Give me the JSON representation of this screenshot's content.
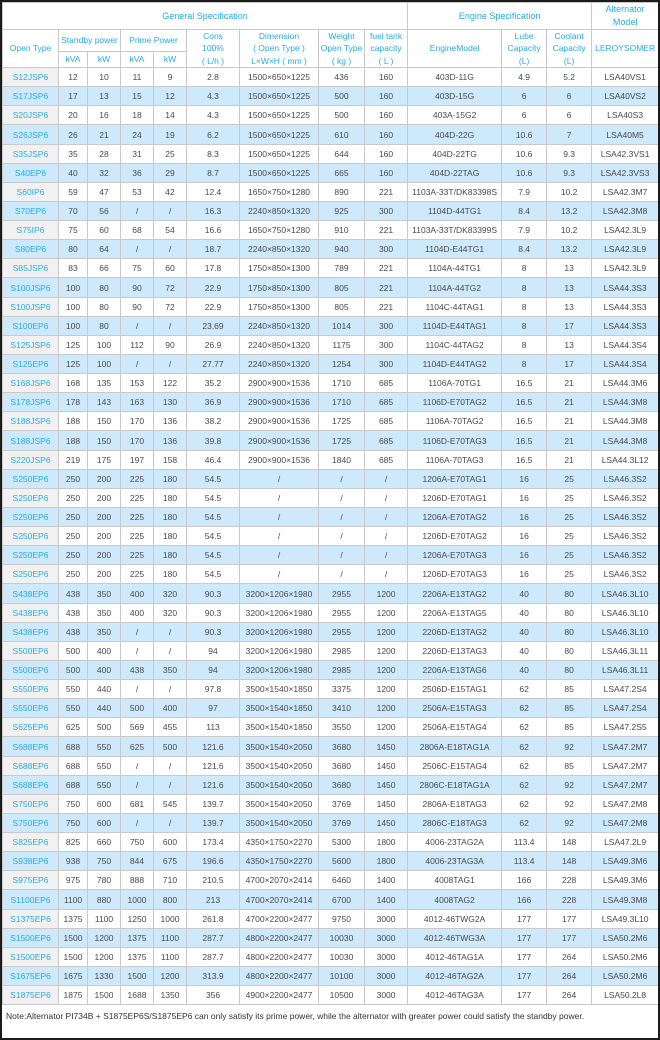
{
  "table": {
    "header": {
      "group_general": "General Specification",
      "group_engine": "Engine Specification",
      "group_alternator": "Alternator Model",
      "open_type": "Open Type",
      "standby": "Standby power",
      "prime": "Prime Power",
      "kva": "kVA",
      "kw": "kW",
      "cons": [
        "Cons",
        "100%",
        "( L/h )"
      ],
      "dimension": [
        "Dimension",
        "( Open Type )",
        "L×W×H ( mm )"
      ],
      "weight": [
        "Weight",
        "Open Type",
        "( kg )"
      ],
      "fuel": [
        "fuel tank",
        "capacity",
        "( L )"
      ],
      "engine_model": "EngineModel",
      "lube": [
        "Lube",
        "Capacity",
        "(L)"
      ],
      "coolant": [
        "Coolant",
        "Capacity",
        "(L)"
      ],
      "leroysomer": "LEROYSOMER"
    },
    "rows": [
      [
        "S12JSP6",
        "12",
        "10",
        "11",
        "9",
        "2.8",
        "1500×650×1225",
        "436",
        "160",
        "403D-11G",
        "4.9",
        "5.2",
        "LSA40VS1"
      ],
      [
        "S17JSP6",
        "17",
        "13",
        "15",
        "12",
        "4.3",
        "1500×650×1225",
        "500",
        "160",
        "403D-15G",
        "6",
        "6",
        "LSA40VS2"
      ],
      [
        "S20JSP6",
        "20",
        "16",
        "18",
        "14",
        "4.3",
        "1500×650×1225",
        "500",
        "160",
        "403A-15G2",
        "6",
        "6",
        "LSA40S3"
      ],
      [
        "S26JSP6",
        "26",
        "21",
        "24",
        "19",
        "6.2",
        "1500×650×1225",
        "610",
        "160",
        "404D-22G",
        "10.6",
        "7",
        "LSA40M5"
      ],
      [
        "S35JSP6",
        "35",
        "28",
        "31",
        "25",
        "8.3",
        "1500×650×1225",
        "644",
        "160",
        "404D-22TG",
        "10.6",
        "9.3",
        "LSA42.3VS1"
      ],
      [
        "S40EP6",
        "40",
        "32",
        "36",
        "29",
        "8.7",
        "1500×650×1225",
        "665",
        "160",
        "404D-22TAG",
        "10.6",
        "9.3",
        "LSA42.3VS3"
      ],
      [
        "S60IP6",
        "59",
        "47",
        "53",
        "42",
        "12.4",
        "1650×750×1280",
        "890",
        "221",
        "1103A-33T/DK83398S",
        "7.9",
        "10.2",
        "LSA42.3M7"
      ],
      [
        "S70EP6",
        "70",
        "56",
        "/",
        "/",
        "16.3",
        "2240×850×1320",
        "925",
        "300",
        "1104D-44TG1",
        "8.4",
        "13.2",
        "LSA42.3M8"
      ],
      [
        "S75IP6",
        "75",
        "60",
        "68",
        "54",
        "16.6",
        "1650×750×1280",
        "910",
        "221",
        "1103A-33T/DK83399S",
        "7.9",
        "10.2",
        "LSA42.3L9"
      ],
      [
        "S80EP6",
        "80",
        "64",
        "/",
        "/",
        "18.7",
        "2240×850×1320",
        "940",
        "300",
        "1104D-E44TG1",
        "8.4",
        "13.2",
        "LSA42.3L9"
      ],
      [
        "S85JSP6",
        "83",
        "66",
        "75",
        "60",
        "17.8",
        "1750×850×1300",
        "789",
        "221",
        "1104A-44TG1",
        "8",
        "13",
        "LSA42.3L9"
      ],
      [
        "S100JSP6",
        "100",
        "80",
        "90",
        "72",
        "22.9",
        "1750×850×1300",
        "805",
        "221",
        "1104A-44TG2",
        "8",
        "13",
        "LSA44.3S3"
      ],
      [
        "S100JSP6",
        "100",
        "80",
        "90",
        "72",
        "22.9",
        "1750×850×1300",
        "805",
        "221",
        "1104C-44TAG1",
        "8",
        "13",
        "LSA44.3S3"
      ],
      [
        "S100EP6",
        "100",
        "80",
        "/",
        "/",
        "23.69",
        "2240×850×1320",
        "1014",
        "300",
        "1104D-E44TAG1",
        "8",
        "17",
        "LSA44.3S3"
      ],
      [
        "S125JSP6",
        "125",
        "100",
        "112",
        "90",
        "26.9",
        "2240×850×1320",
        "1175",
        "300",
        "1104C-44TAG2",
        "8",
        "13",
        "LSA44.3S4"
      ],
      [
        "S125EP6",
        "125",
        "100",
        "/",
        "/",
        "27.77",
        "2240×850×1320",
        "1254",
        "300",
        "1104D-E44TAG2",
        "8",
        "17",
        "LSA44.3S4"
      ],
      [
        "S168JSP6",
        "168",
        "135",
        "153",
        "122",
        "35.2",
        "2900×900×1536",
        "1710",
        "685",
        "1106A-70TG1",
        "16.5",
        "21",
        "LSA44.3M6"
      ],
      [
        "S178JSP6",
        "178",
        "143",
        "163",
        "130",
        "36.9",
        "2900×900×1536",
        "1710",
        "685",
        "1106D-E70TAG2",
        "16.5",
        "21",
        "LSA44.3M8"
      ],
      [
        "S188JSP6",
        "188",
        "150",
        "170",
        "136",
        "38.2",
        "2900×900×1536",
        "1725",
        "685",
        "1106A-70TAG2",
        "16.5",
        "21",
        "LSA44.3M8"
      ],
      [
        "S188JSP6",
        "188",
        "150",
        "170",
        "136",
        "39.8",
        "2900×900×1536",
        "1725",
        "685",
        "1106D-E70TAG3",
        "16.5",
        "21",
        "LSA44.3M8"
      ],
      [
        "S220JSP6",
        "219",
        "175",
        "197",
        "158",
        "46.4",
        "2900×900×1536",
        "1840",
        "685",
        "1106A-70TAG3",
        "16.5",
        "21",
        "LSA44.3L12"
      ],
      [
        "S250EP6",
        "250",
        "200",
        "225",
        "180",
        "54.5",
        "/",
        "/",
        "/",
        "1206A-E70TAG1",
        "16",
        "25",
        "LSA46.3S2"
      ],
      [
        "S250EP6",
        "250",
        "200",
        "225",
        "180",
        "54.5",
        "/",
        "/",
        "/",
        "1206D-E70TAG1",
        "16",
        "25",
        "LSA46.3S2"
      ],
      [
        "S250EP6",
        "250",
        "200",
        "225",
        "180",
        "54.5",
        "/",
        "/",
        "/",
        "1206A-E70TAG2",
        "16",
        "25",
        "LSA46.3S2"
      ],
      [
        "S250EP6",
        "250",
        "200",
        "225",
        "180",
        "54.5",
        "/",
        "/",
        "/",
        "1206D-E70TAG2",
        "16",
        "25",
        "LSA46.3S2"
      ],
      [
        "S250EP6",
        "250",
        "200",
        "225",
        "180",
        "54.5",
        "/",
        "/",
        "/",
        "1206A-E70TAG3",
        "16",
        "25",
        "LSA46.3S2"
      ],
      [
        "S250EP6",
        "250",
        "200",
        "225",
        "180",
        "54.5",
        "/",
        "/",
        "/",
        "1206D-E70TAG3",
        "16",
        "25",
        "LSA46.3S2"
      ],
      [
        "S438EP6",
        "438",
        "350",
        "400",
        "320",
        "90.3",
        "3200×1206×1980",
        "2955",
        "1200",
        "2206A-E13TAG2",
        "40",
        "80",
        "LSA46.3L10"
      ],
      [
        "S438EP6",
        "438",
        "350",
        "400",
        "320",
        "90.3",
        "3200×1206×1980",
        "2955",
        "1200",
        "2206A-E13TAG5",
        "40",
        "80",
        "LSA46.3L10"
      ],
      [
        "S438EP6",
        "438",
        "350",
        "/",
        "/",
        "90.3",
        "3200×1206×1980",
        "2955",
        "1200",
        "2206D-E13TAG2",
        "40",
        "80",
        "LSA46.3L10"
      ],
      [
        "S500EP6",
        "500",
        "400",
        "/",
        "/",
        "94",
        "3200×1206×1980",
        "2985",
        "1200",
        "2206D-E13TAG3",
        "40",
        "80",
        "LSA46.3L11"
      ],
      [
        "S500EP6",
        "500",
        "400",
        "438",
        "350",
        "94",
        "3200×1206×1980",
        "2985",
        "1200",
        "2206A-E13TAG6",
        "40",
        "80",
        "LSA46.3L11"
      ],
      [
        "S550EP6",
        "550",
        "440",
        "/",
        "/",
        "97.8",
        "3500×1540×1850",
        "3375",
        "1200",
        "2506D-E15TAG1",
        "62",
        "85",
        "LSA47.2S4"
      ],
      [
        "S550EP6",
        "550",
        "440",
        "500",
        "400",
        "97",
        "3500×1540×1850",
        "3410",
        "1200",
        "2506A-E15TAG3",
        "62",
        "85",
        "LSA47.2S4"
      ],
      [
        "S625EP6",
        "625",
        "500",
        "569",
        "455",
        "113",
        "3500×1540×1850",
        "3550",
        "1200",
        "2506A-E15TAG4",
        "62",
        "85",
        "LSA47.2S5"
      ],
      [
        "S688EP6",
        "688",
        "550",
        "625",
        "500",
        "121.6",
        "3500×1540×2050",
        "3680",
        "1450",
        "2806A-E18TAG1A",
        "62",
        "92",
        "LSA47.2M7"
      ],
      [
        "S688EP6",
        "688",
        "550",
        "/",
        "/",
        "121.6",
        "3500×1540×2050",
        "3680",
        "1450",
        "2506C-E15TAG4",
        "62",
        "85",
        "LSA47.2M7"
      ],
      [
        "S688EP6",
        "688",
        "550",
        "/",
        "/",
        "121.6",
        "3500×1540×2050",
        "3680",
        "1450",
        "2806C-E18TAG1A",
        "62",
        "92",
        "LSA47.2M7"
      ],
      [
        "S750EP6",
        "750",
        "600",
        "681",
        "545",
        "139.7",
        "3500×1540×2050",
        "3769",
        "1450",
        "2806A-E18TAG3",
        "62",
        "92",
        "LSA47.2M8"
      ],
      [
        "S750EP6",
        "750",
        "600",
        "/",
        "/",
        "139.7",
        "3500×1540×2050",
        "3769",
        "1450",
        "2806C-E18TAG3",
        "62",
        "92",
        "LSA47.2M8"
      ],
      [
        "S825EP6",
        "825",
        "660",
        "750",
        "600",
        "173.4",
        "4350×1750×2270",
        "5300",
        "1800",
        "4006-23TAG2A",
        "113.4",
        "148",
        "LSA47.2L9"
      ],
      [
        "S938EP6",
        "938",
        "750",
        "844",
        "675",
        "196.6",
        "4350×1750×2270",
        "5600",
        "1800",
        "4006-23TAG3A",
        "113.4",
        "148",
        "LSA49.3M6"
      ],
      [
        "S975EP6",
        "975",
        "780",
        "888",
        "710",
        "210.5",
        "4700×2070×2414",
        "6460",
        "1400",
        "4008TAG1",
        "166",
        "228",
        "LSA49.3M6"
      ],
      [
        "S1100EP6",
        "1100",
        "880",
        "1000",
        "800",
        "213",
        "4700×2070×2414",
        "6700",
        "1400",
        "4008TAG2",
        "166",
        "228",
        "LSA49.3M8"
      ],
      [
        "S1375EP6",
        "1375",
        "1100",
        "1250",
        "1000",
        "261.8",
        "4700×2200×2477",
        "9750",
        "3000",
        "4012-46TWG2A",
        "177",
        "177",
        "LSA49.3L10"
      ],
      [
        "S1500EP6",
        "1500",
        "1200",
        "1375",
        "1100",
        "287.7",
        "4800×2200×2477",
        "10030",
        "3000",
        "4012-46TWG3A",
        "177",
        "177",
        "LSA50.2M6"
      ],
      [
        "S1500EP6",
        "1500",
        "1200",
        "1375",
        "1100",
        "287.7",
        "4800×2200×2477",
        "10030",
        "3000",
        "4012-46TAG1A",
        "177",
        "264",
        "LSA50.2M6"
      ],
      [
        "S1675EP6",
        "1675",
        "1330",
        "1500",
        "1200",
        "313.9",
        "4800×2200×2477",
        "10100",
        "3000",
        "4012-46TAG2A",
        "177",
        "264",
        "LSA50.2M6"
      ],
      [
        "S1875EP6",
        "1875",
        "1500",
        "1688",
        "1350",
        "356",
        "4900×2200×2477",
        "10500",
        "3000",
        "4012-46TAG3A",
        "177",
        "264",
        "LSA50.2L8"
      ]
    ]
  },
  "note": "Note:Alternator PI734B + S1875EP6S/S1875EP6 can only satisfy its prime power, while the alternator with greater power could satisfy the standby power."
}
